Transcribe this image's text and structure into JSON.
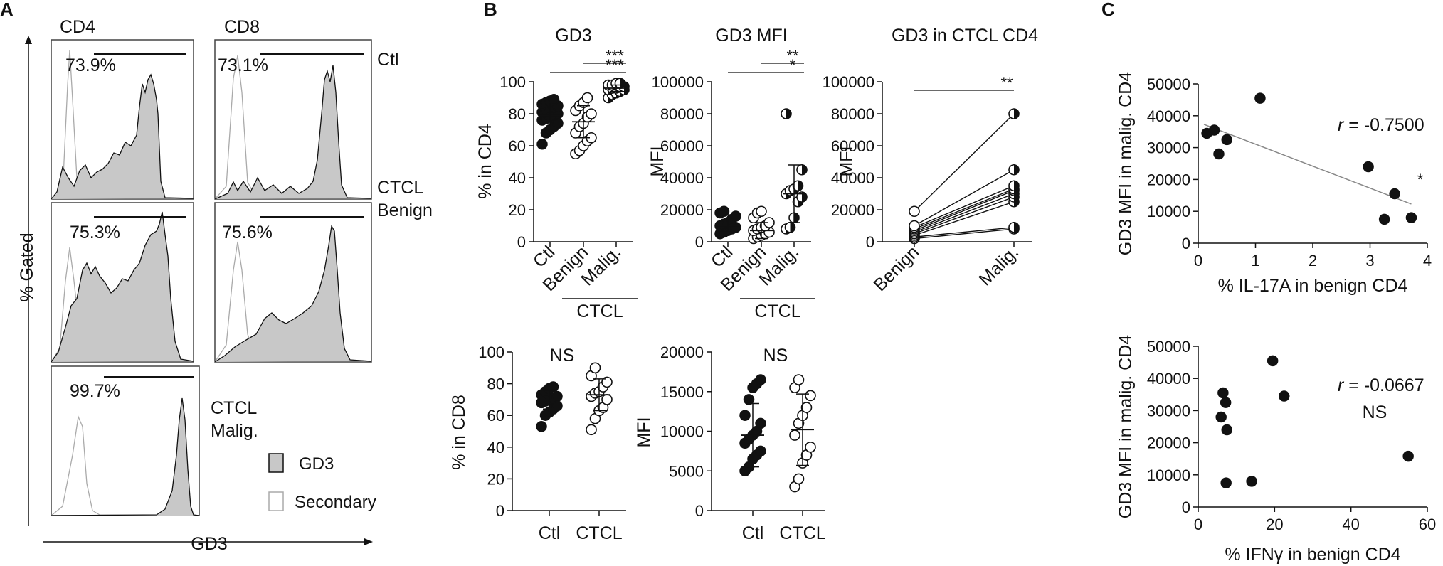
{
  "panels": {
    "a": "A",
    "b": "B",
    "c": "C"
  },
  "histograms": {
    "column_labels": [
      "CD4",
      "CD8"
    ],
    "row_labels": [
      "Ctl",
      "CTCL\nBenign",
      "CTCL\nMalig."
    ],
    "y_axis_label": "% Gated",
    "x_axis_label": "GD3",
    "gates": [
      {
        "name": "ctl-cd4",
        "percent": "73.9%"
      },
      {
        "name": "ctl-cd8",
        "percent": "73.1%"
      },
      {
        "name": "benign-cd4",
        "percent": "75.3%"
      },
      {
        "name": "benign-cd8",
        "percent": "75.6%"
      },
      {
        "name": "malig-cd4",
        "percent": "99.7%"
      }
    ],
    "legend": [
      {
        "label": "GD3",
        "color": "#c8c8c8"
      },
      {
        "label": "Secondary",
        "color": "#ffffff"
      }
    ]
  },
  "chart_data": [
    {
      "id": "gd3-cd4",
      "type": "scatter",
      "title": "GD3",
      "xlabel": "",
      "ylabel": "% in CD4",
      "ylim": [
        0,
        100
      ],
      "yticks": [
        0,
        20,
        40,
        60,
        80,
        100
      ],
      "categories": [
        "Ctl",
        "Benign",
        "Malig."
      ],
      "group_label": "CTCL",
      "series": [
        {
          "name": "Ctl",
          "marker": "filled",
          "values": [
            61,
            68,
            70,
            72,
            74,
            76,
            77,
            78,
            79,
            80,
            81,
            82,
            83,
            84,
            85,
            86,
            87,
            88,
            89
          ],
          "mean": 79,
          "sd": 8
        },
        {
          "name": "Benign",
          "marker": "open",
          "values": [
            55,
            57,
            60,
            63,
            65,
            68,
            72,
            74,
            78,
            80,
            82,
            85,
            87,
            90
          ],
          "mean": 75,
          "sd": 10
        },
        {
          "name": "Malig.",
          "marker": "half",
          "values": [
            90,
            92,
            93,
            94,
            95,
            95,
            96,
            96,
            97,
            97,
            98,
            98,
            99,
            99
          ],
          "mean": 96,
          "sd": 2
        }
      ],
      "annotations": [
        "***",
        "***"
      ]
    },
    {
      "id": "gd3-mfi",
      "type": "scatter",
      "title": "GD3 MFI",
      "xlabel": "",
      "ylabel": "MFI",
      "ylim": [
        0,
        100000
      ],
      "yticks": [
        0,
        20000,
        40000,
        60000,
        80000,
        100000
      ],
      "categories": [
        "Ctl",
        "Benign",
        "Malig."
      ],
      "group_label": "CTCL",
      "series": [
        {
          "name": "Ctl",
          "marker": "filled",
          "values": [
            5000,
            6000,
            7000,
            8000,
            9000,
            10000,
            11000,
            12000,
            14000,
            16000,
            18000,
            19000
          ],
          "mean": 10000,
          "sd": 4000
        },
        {
          "name": "Benign",
          "marker": "open",
          "values": [
            2000,
            3000,
            4000,
            5000,
            6000,
            7000,
            8000,
            9000,
            10000,
            12000,
            15000,
            18000,
            19000
          ],
          "mean": 7000,
          "sd": 5000
        },
        {
          "name": "Malig.",
          "marker": "half",
          "values": [
            8000,
            9000,
            15000,
            25000,
            28000,
            30000,
            32000,
            33000,
            35000,
            45000,
            80000
          ],
          "mean": 30000,
          "sd": 18000
        }
      ],
      "annotations": [
        "**",
        "*"
      ]
    },
    {
      "id": "gd3-ctcl-cd4",
      "type": "line",
      "title": "GD3 in CTCL CD4",
      "xlabel": "",
      "ylabel": "MFI",
      "ylim": [
        0,
        100000
      ],
      "yticks": [
        0,
        20000,
        40000,
        60000,
        80000,
        100000
      ],
      "categories": [
        "Benign",
        "Malig."
      ],
      "pairs": [
        [
          2000,
          8000
        ],
        [
          3000,
          9000
        ],
        [
          4000,
          25000
        ],
        [
          5000,
          28000
        ],
        [
          6000,
          30000
        ],
        [
          7000,
          32000
        ],
        [
          8000,
          33000
        ],
        [
          9000,
          35000
        ],
        [
          10000,
          45000
        ],
        [
          19000,
          80000
        ]
      ],
      "annotations": [
        "**"
      ]
    },
    {
      "id": "gd3-cd8",
      "type": "scatter",
      "title": "NS",
      "xlabel": "",
      "ylabel": "% in CD8",
      "ylim": [
        0,
        100
      ],
      "yticks": [
        0,
        20,
        40,
        60,
        80,
        100
      ],
      "categories": [
        "Ctl",
        "CTCL"
      ],
      "series": [
        {
          "name": "Ctl",
          "marker": "filled",
          "values": [
            53,
            60,
            62,
            64,
            66,
            68,
            69,
            70,
            71,
            72,
            73,
            75,
            77,
            78
          ],
          "mean": 70,
          "sd": 6
        },
        {
          "name": "CTCL",
          "marker": "open",
          "values": [
            51,
            58,
            63,
            65,
            70,
            72,
            74,
            75,
            78,
            81,
            85,
            90
          ],
          "mean": 73,
          "sd": 10
        }
      ]
    },
    {
      "id": "gd3-mfi-cd8",
      "type": "scatter",
      "title": "NS",
      "xlabel": "",
      "ylabel": "MFI",
      "ylim": [
        0,
        20000
      ],
      "yticks": [
        0,
        5000,
        10000,
        15000,
        20000
      ],
      "categories": [
        "Ctl",
        "CTCL"
      ],
      "series": [
        {
          "name": "Ctl",
          "marker": "filled",
          "values": [
            5000,
            5500,
            6500,
            7000,
            7500,
            8500,
            9000,
            9500,
            10000,
            11000,
            12000,
            14000,
            15500,
            16000,
            16500
          ],
          "mean": 9500,
          "sd": 4000
        },
        {
          "name": "CTCL",
          "marker": "open",
          "values": [
            3000,
            4000,
            6000,
            7000,
            8000,
            9500,
            11000,
            12000,
            13000,
            14500,
            15500,
            16500
          ],
          "mean": 10200,
          "sd": 4500
        }
      ]
    },
    {
      "id": "corr-il17a",
      "type": "scatter",
      "title": "",
      "xlabel": "% IL-17A in benign CD4",
      "ylabel": "GD3 MFI in malig. CD4",
      "xlim": [
        0,
        4
      ],
      "xticks": [
        0,
        1,
        2,
        3,
        4
      ],
      "ylim": [
        0,
        50000
      ],
      "yticks": [
        0,
        10000,
        20000,
        30000,
        40000,
        50000
      ],
      "points": [
        [
          0.15,
          34500
        ],
        [
          0.28,
          35500
        ],
        [
          0.36,
          28000
        ],
        [
          0.5,
          32500
        ],
        [
          1.08,
          45500
        ],
        [
          2.97,
          24000
        ],
        [
          3.25,
          7500
        ],
        [
          3.43,
          15500
        ],
        [
          3.72,
          8000
        ]
      ],
      "fit": [
        [
          0.1,
          37300
        ],
        [
          3.72,
          12300
        ]
      ],
      "r_label": "r",
      "r_value": " = -0.7500",
      "significance": "*"
    },
    {
      "id": "corr-ifng",
      "type": "scatter",
      "title": "",
      "xlabel": "% IFNγ in benign CD4",
      "ylabel": "GD3 MFI in malig. CD4",
      "xlim": [
        0,
        60
      ],
      "xticks": [
        0,
        20,
        40,
        60
      ],
      "ylim": [
        0,
        50000
      ],
      "yticks": [
        0,
        10000,
        20000,
        30000,
        40000,
        50000
      ],
      "points": [
        [
          6,
          28000
        ],
        [
          6.5,
          35500
        ],
        [
          7.2,
          32500
        ],
        [
          7.5,
          24000
        ],
        [
          7.3,
          7500
        ],
        [
          14,
          8000
        ],
        [
          19.5,
          45500
        ],
        [
          22.5,
          34500
        ],
        [
          55,
          15800
        ]
      ],
      "r_label": "r",
      "r_value": " = -0.0667",
      "significance": "NS"
    }
  ]
}
